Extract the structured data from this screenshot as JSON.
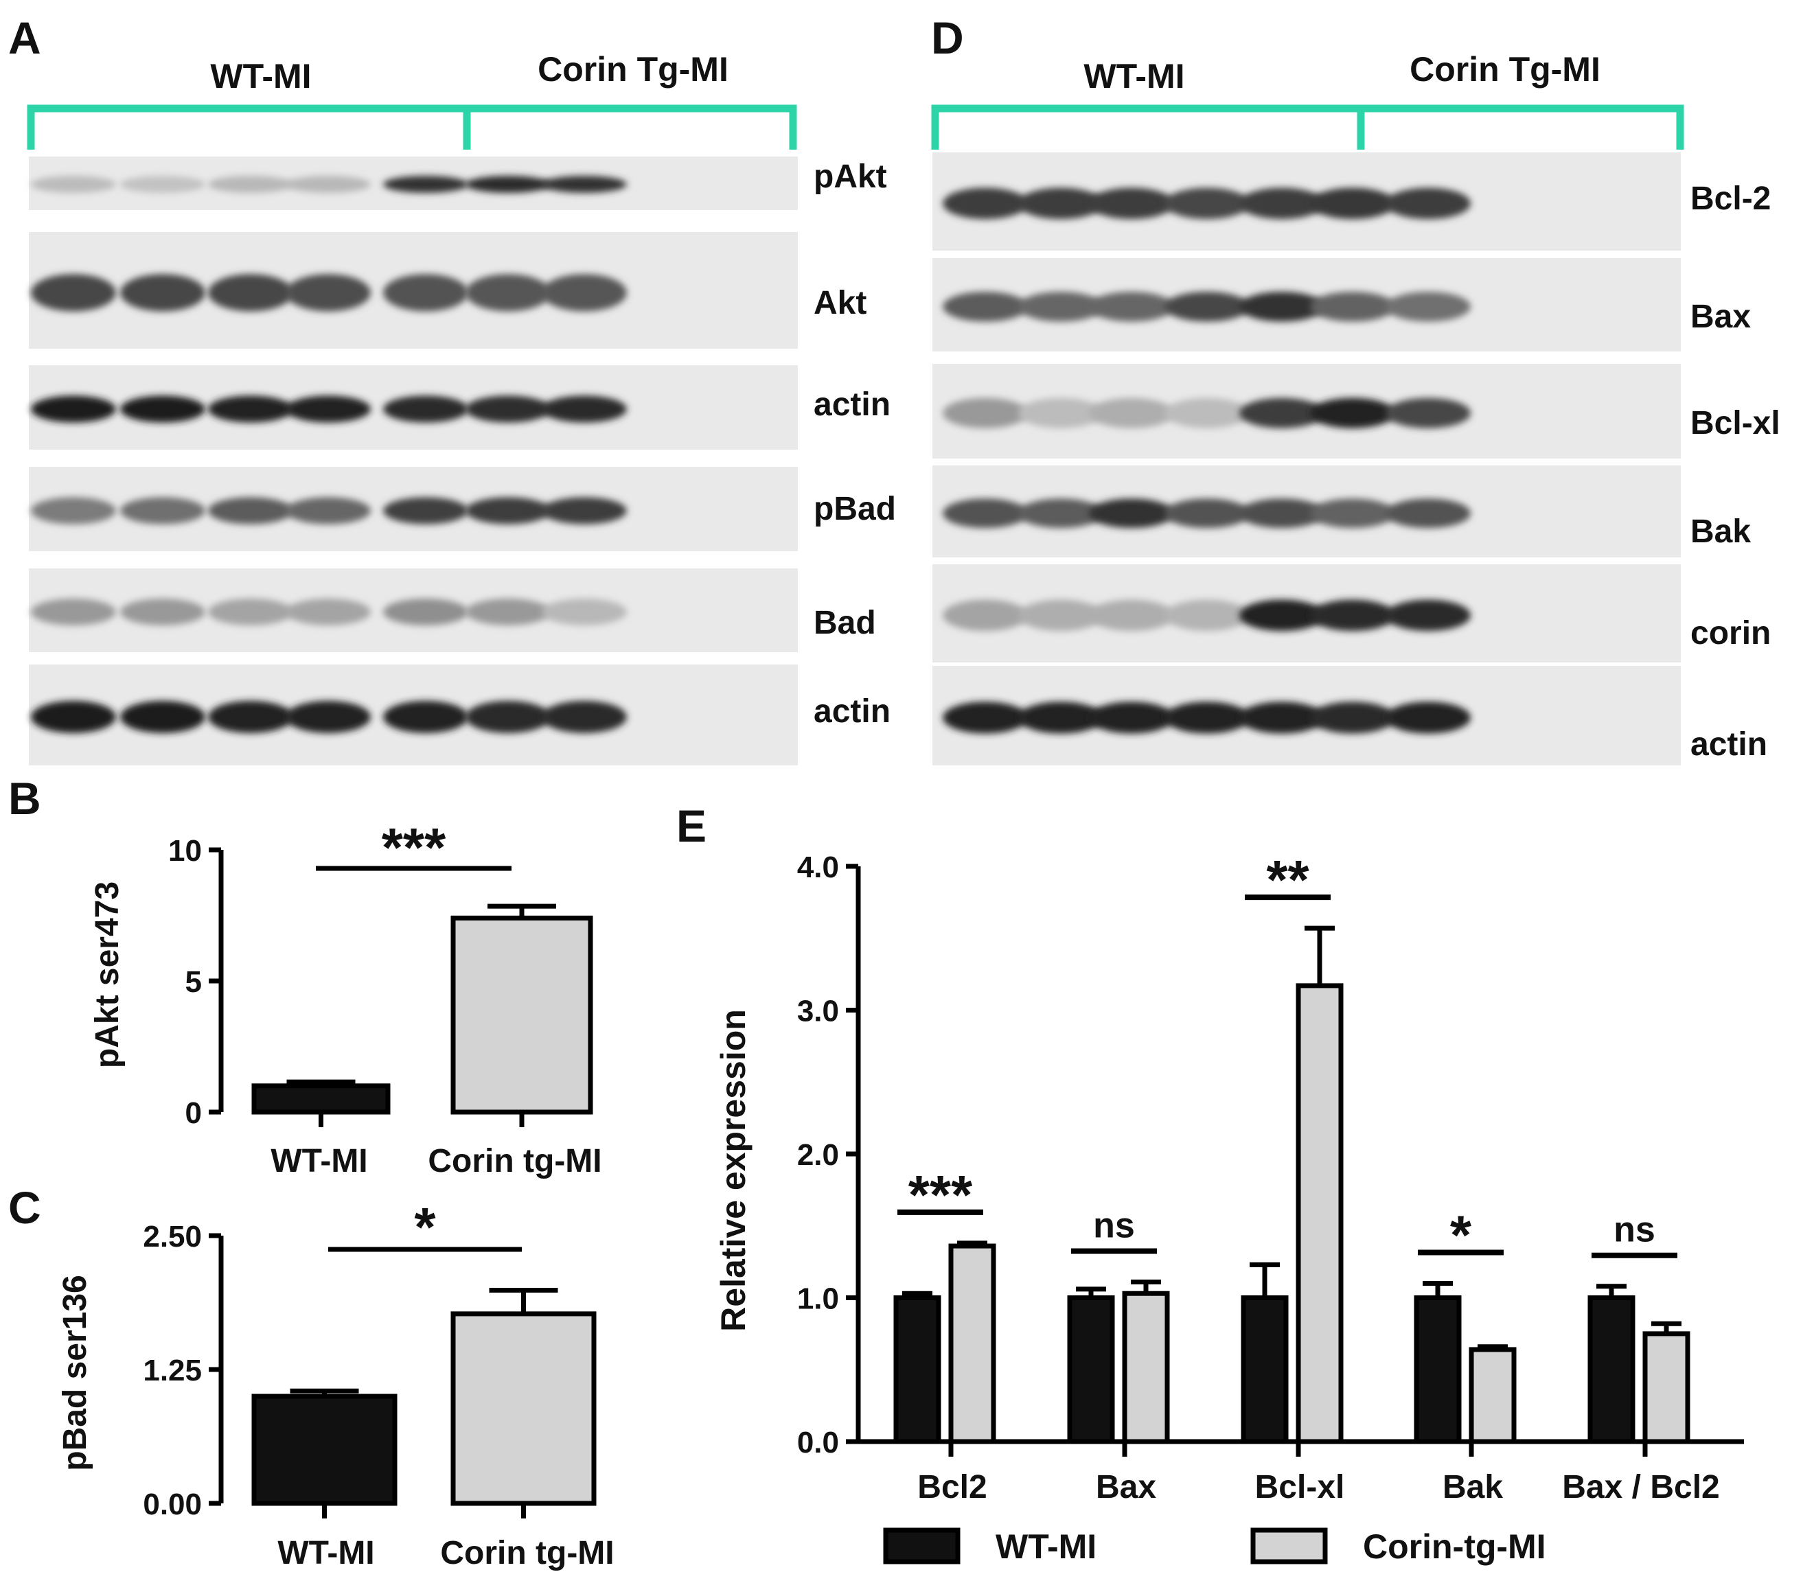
{
  "panel_a": {
    "letter": "A",
    "group_left": "WT-MI",
    "group_right": "Corin Tg-MI",
    "blots": [
      {
        "label": "pAkt",
        "intensity": [
          0.18,
          0.15,
          0.2,
          0.2,
          0.85,
          0.9,
          0.85
        ]
      },
      {
        "label": "Akt",
        "intensity": [
          0.75,
          0.75,
          0.75,
          0.72,
          0.7,
          0.68,
          0.68
        ]
      },
      {
        "label": "actin",
        "intensity": [
          0.95,
          0.95,
          0.92,
          0.93,
          0.9,
          0.88,
          0.9
        ]
      },
      {
        "label": "pBad",
        "intensity": [
          0.5,
          0.55,
          0.65,
          0.6,
          0.78,
          0.8,
          0.8
        ]
      },
      {
        "label": "Bad",
        "intensity": [
          0.35,
          0.35,
          0.3,
          0.3,
          0.4,
          0.35,
          0.2
        ]
      },
      {
        "label": "actin",
        "intensity": [
          0.95,
          0.95,
          0.93,
          0.93,
          0.92,
          0.9,
          0.9
        ]
      }
    ]
  },
  "panel_d": {
    "letter": "D",
    "group_left": "WT-MI",
    "group_right": "Corin Tg-MI",
    "blots": [
      {
        "label": "Bcl-2",
        "intensity": [
          0.8,
          0.8,
          0.8,
          0.75,
          0.8,
          0.82,
          0.8
        ]
      },
      {
        "label": "Bax",
        "intensity": [
          0.65,
          0.6,
          0.6,
          0.75,
          0.85,
          0.62,
          0.55
        ]
      },
      {
        "label": "Bcl-xl",
        "intensity": [
          0.35,
          0.18,
          0.25,
          0.18,
          0.8,
          0.92,
          0.75
        ]
      },
      {
        "label": "Bak",
        "intensity": [
          0.7,
          0.65,
          0.85,
          0.7,
          0.72,
          0.62,
          0.7
        ]
      },
      {
        "label": "corin",
        "intensity": [
          0.3,
          0.25,
          0.25,
          0.22,
          0.92,
          0.9,
          0.9
        ]
      },
      {
        "label": "actin",
        "intensity": [
          0.92,
          0.92,
          0.92,
          0.92,
          0.92,
          0.9,
          0.92
        ]
      }
    ]
  },
  "panel_b_letter": "B",
  "panel_c_letter": "C",
  "panel_e_letter": "E",
  "colors": {
    "wt": "#111111",
    "tg": "#d3d3d3",
    "bracket": "#2dd4a8"
  },
  "chart_data": [
    {
      "type": "bar",
      "panel": "B",
      "categories": [
        "WT-MI",
        "Corin tg-MI"
      ],
      "values": [
        1.0,
        7.4
      ],
      "errors": [
        0.15,
        0.45
      ],
      "ylabel": "pAkt ser473",
      "ylim": [
        0,
        10
      ],
      "yticks": [
        "0",
        "5",
        "10"
      ],
      "significance": "***"
    },
    {
      "type": "bar",
      "panel": "C",
      "categories": [
        "WT-MI",
        "Corin tg-MI"
      ],
      "values": [
        1.0,
        1.77
      ],
      "errors": [
        0.05,
        0.22
      ],
      "ylabel": "pBad ser136",
      "ylim": [
        0,
        2.5
      ],
      "yticks": [
        "0.00",
        "1.25",
        "2.50"
      ],
      "significance": "*"
    },
    {
      "type": "bar",
      "panel": "E",
      "categories": [
        "Bcl2",
        "Bax",
        "Bcl-xl",
        "Bak",
        "Bax / Bcl2"
      ],
      "series": [
        {
          "name": "WT-MI",
          "values": [
            1.0,
            1.0,
            1.0,
            1.0,
            1.0
          ],
          "errors": [
            0.03,
            0.06,
            0.23,
            0.1,
            0.08
          ]
        },
        {
          "name": "Corin-tg-MI",
          "values": [
            1.36,
            1.03,
            3.17,
            0.64,
            0.75
          ],
          "errors": [
            0.02,
            0.08,
            0.4,
            0.02,
            0.07
          ]
        }
      ],
      "significance": [
        "***",
        "ns",
        "**",
        "*",
        "ns"
      ],
      "ylabel": "Relative expression",
      "ylim": [
        0,
        4.0
      ],
      "yticks": [
        "0.0",
        "1.0",
        "2.0",
        "3.0",
        "4.0"
      ],
      "legend_position": "bottom"
    }
  ]
}
